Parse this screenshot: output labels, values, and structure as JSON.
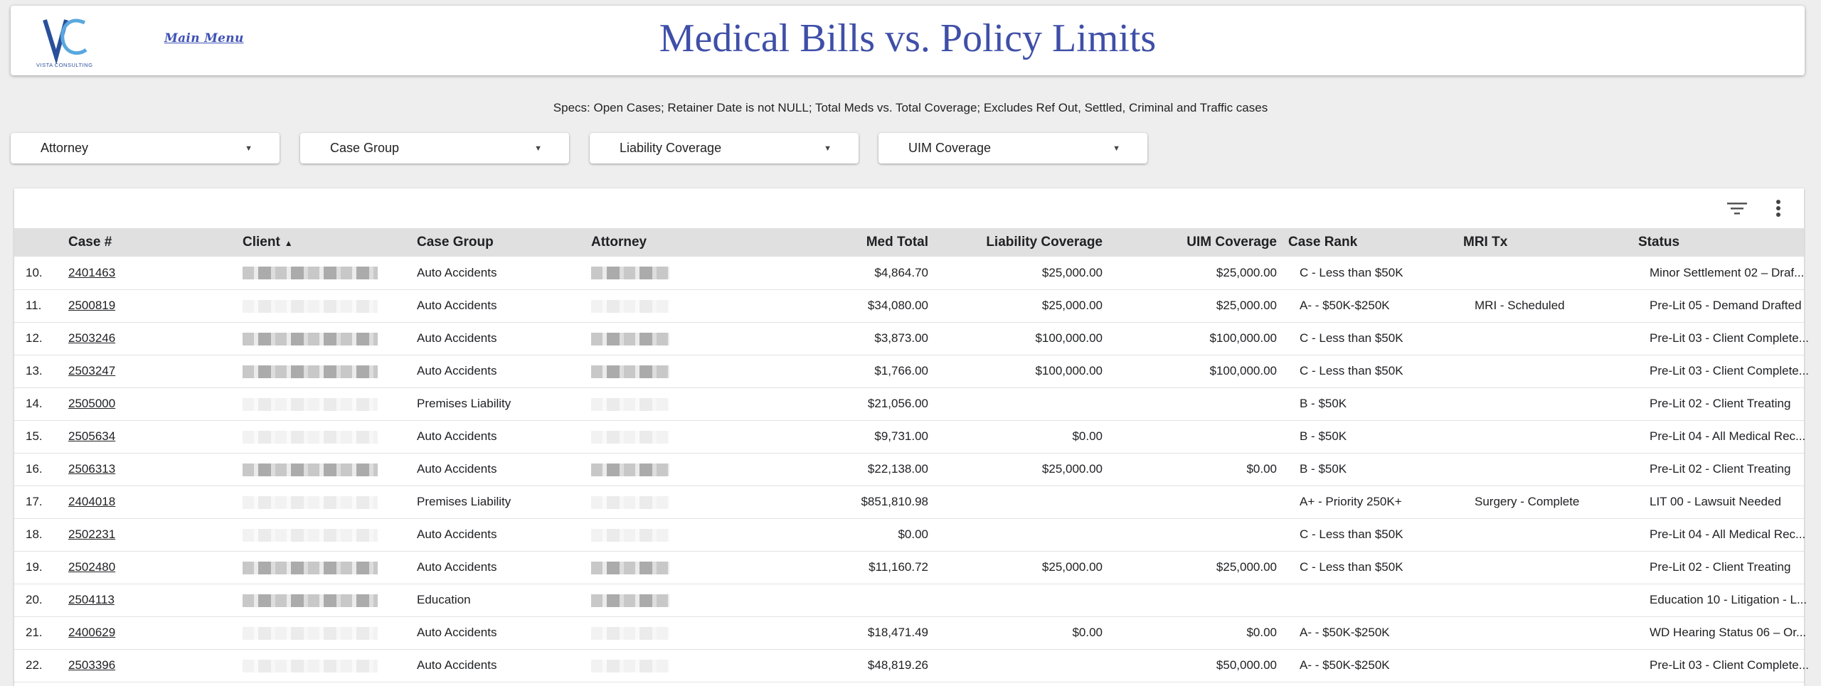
{
  "header": {
    "logo_text": "VISTA CONSULTING",
    "main_menu_label": "Main Menu",
    "title": "Medical Bills vs. Policy Limits"
  },
  "specs": "Specs:  Open Cases;  Retainer Date is not NULL;  Total Meds vs. Total Coverage;  Excludes Ref Out, Settled, Criminal and Traffic cases",
  "filters": [
    {
      "label": "Attorney"
    },
    {
      "label": "Case Group"
    },
    {
      "label": "Liability Coverage"
    },
    {
      "label": "UIM Coverage"
    }
  ],
  "table": {
    "columns": [
      "Case #",
      "Client",
      "Case Group",
      "Attorney",
      "Med Total",
      "Liability Coverage",
      "UIM Coverage",
      "Case Rank",
      "MRI Tx",
      "Status"
    ],
    "sort_indicator": "▲",
    "rows": [
      {
        "n": "10.",
        "case": "2401463",
        "group": "Auto Accidents",
        "med": "$4,864.70",
        "liab": "$25,000.00",
        "uim": "$25,000.00",
        "rank": "C - Less than $50K",
        "mri": "",
        "status": "Minor Settlement 02 – Draf..."
      },
      {
        "n": "11.",
        "case": "2500819",
        "group": "Auto Accidents",
        "med": "$34,080.00",
        "liab": "$25,000.00",
        "uim": "$25,000.00",
        "rank": "A- - $50K-$250K",
        "mri": "MRI - Scheduled",
        "status": "Pre-Lit 05 - Demand Drafted"
      },
      {
        "n": "12.",
        "case": "2503246",
        "group": "Auto Accidents",
        "med": "$3,873.00",
        "liab": "$100,000.00",
        "uim": "$100,000.00",
        "rank": "C - Less than $50K",
        "mri": "",
        "status": "Pre-Lit 03 - Client Complete..."
      },
      {
        "n": "13.",
        "case": "2503247",
        "group": "Auto Accidents",
        "med": "$1,766.00",
        "liab": "$100,000.00",
        "uim": "$100,000.00",
        "rank": "C - Less than $50K",
        "mri": "",
        "status": "Pre-Lit 03 - Client Complete..."
      },
      {
        "n": "14.",
        "case": "2505000",
        "group": "Premises Liability",
        "med": "$21,056.00",
        "liab": "",
        "uim": "",
        "rank": "B - $50K",
        "mri": "",
        "status": "Pre-Lit 02 - Client Treating"
      },
      {
        "n": "15.",
        "case": "2505634",
        "group": "Auto Accidents",
        "med": "$9,731.00",
        "liab": "$0.00",
        "uim": "",
        "rank": "B - $50K",
        "mri": "",
        "status": "Pre-Lit 04 - All Medical Rec..."
      },
      {
        "n": "16.",
        "case": "2506313",
        "group": "Auto Accidents",
        "med": "$22,138.00",
        "liab": "$25,000.00",
        "uim": "$0.00",
        "rank": "B - $50K",
        "mri": "",
        "status": "Pre-Lit 02 - Client Treating"
      },
      {
        "n": "17.",
        "case": "2404018",
        "group": "Premises Liability",
        "med": "$851,810.98",
        "liab": "",
        "uim": "",
        "rank": "A+ - Priority 250K+",
        "mri": "Surgery - Complete",
        "status": "LIT 00 - Lawsuit Needed"
      },
      {
        "n": "18.",
        "case": "2502231",
        "group": "Auto Accidents",
        "med": "$0.00",
        "liab": "",
        "uim": "",
        "rank": "C - Less than $50K",
        "mri": "",
        "status": "Pre-Lit 04 - All Medical Rec..."
      },
      {
        "n": "19.",
        "case": "2502480",
        "group": "Auto Accidents",
        "med": "$11,160.72",
        "liab": "$25,000.00",
        "uim": "$25,000.00",
        "rank": "C - Less than $50K",
        "mri": "",
        "status": "Pre-Lit 02 - Client Treating"
      },
      {
        "n": "20.",
        "case": "2504113",
        "group": "Education",
        "med": "",
        "liab": "",
        "uim": "",
        "rank": "",
        "mri": "",
        "status": "Education 10 - Litigation - L..."
      },
      {
        "n": "21.",
        "case": "2400629",
        "group": "Auto Accidents",
        "med": "$18,471.49",
        "liab": "$0.00",
        "uim": "$0.00",
        "rank": "A- - $50K-$250K",
        "mri": "",
        "status": "WD Hearing Status 06 – Or..."
      },
      {
        "n": "22.",
        "case": "2503396",
        "group": "Auto Accidents",
        "med": "$48,819.26",
        "liab": "",
        "uim": "$50,000.00",
        "rank": "A- - $50K-$250K",
        "mri": "",
        "status": "Pre-Lit 03 - Client Complete..."
      }
    ]
  },
  "colors": {
    "title": "#3f4fa8",
    "header_bg": "#e0e0e0",
    "page_bg": "#eeeeee"
  },
  "icons": [
    "filter-icon",
    "more-vert-icon",
    "dropdown-caret-icon"
  ]
}
